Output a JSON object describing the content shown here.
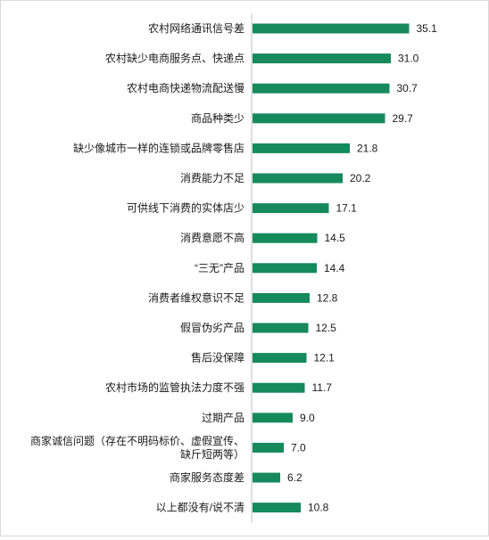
{
  "chart_data": {
    "type": "bar",
    "orientation": "horizontal",
    "categories": [
      "农村网络通讯信号差",
      "农村缺少电商服务点、快递点",
      "农村电商快递物流配送慢",
      "商品种类少",
      "缺少像城市一样的连锁或品牌零售店",
      "消费能力不足",
      "可供线下消费的实体店少",
      "消费意愿不高",
      "“三无”产品",
      "消费者维权意识不足",
      "假冒伪劣产品",
      "售后没保障",
      "农村市场的监管执法力度不强",
      "过期产品",
      "商家诚信问题（存在不明码标价、虚假宣传、缺斤短两等）",
      "商家服务态度差",
      "以上都没有/说不清"
    ],
    "category_lines": [
      [
        "农村网络通讯信号差"
      ],
      [
        "农村缺少电商服务点、快递点"
      ],
      [
        "农村电商快递物流配送慢"
      ],
      [
        "商品种类少"
      ],
      [
        "缺少像城市一样的连锁或品牌零售店"
      ],
      [
        "消费能力不足"
      ],
      [
        "可供线下消费的实体店少"
      ],
      [
        "消费意愿不高"
      ],
      [
        "“三无”产品"
      ],
      [
        "消费者维权意识不足"
      ],
      [
        "假冒伪劣产品"
      ],
      [
        "售后没保障"
      ],
      [
        "农村市场的监管执法力度不强"
      ],
      [
        "过期产品"
      ],
      [
        "商家诚信问题（存在不明码标价、虚假宣传、",
        "缺斤短两等）"
      ],
      [
        "商家服务态度差"
      ],
      [
        "以上都没有/说不清"
      ]
    ],
    "values": [
      35.1,
      31.0,
      30.7,
      29.7,
      21.8,
      20.2,
      17.1,
      14.5,
      14.4,
      12.8,
      12.5,
      12.1,
      11.7,
      9.0,
      7.0,
      6.2,
      10.8
    ],
    "value_labels": [
      "35.1",
      "31.0",
      "30.7",
      "29.7",
      "21.8",
      "20.2",
      "17.1",
      "14.5",
      "14.4",
      "12.8",
      "12.5",
      "12.1",
      "11.7",
      "9.0",
      "7.0",
      "6.2",
      "10.8"
    ],
    "xlim": [
      0,
      40
    ],
    "grid": false,
    "legend": "none",
    "bar_color": "#168a5c",
    "axis_color": "#bfbfbf",
    "text_color": "#1a1a1a"
  }
}
